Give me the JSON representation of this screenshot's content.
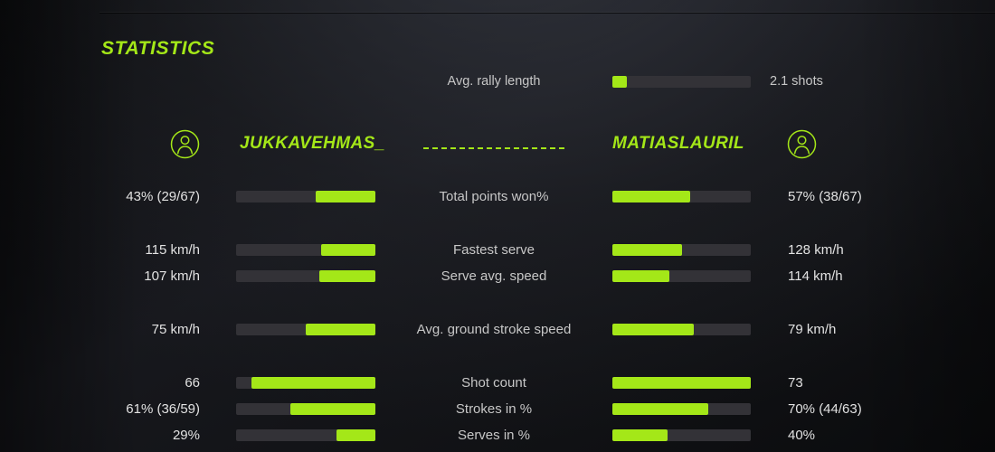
{
  "page": {
    "title": "STATISTICS"
  },
  "colors": {
    "accent": "#a4e718",
    "bar_track": "#333237",
    "label_text": "#c7c7c7",
    "value_text": "#e2e2e2"
  },
  "rally": {
    "label": "Avg. rally length",
    "value": "2.1 shots",
    "fill_pct": 10.5
  },
  "players": {
    "left": {
      "name": "JUKKAVEHMAS_",
      "icon": "person-circle-icon"
    },
    "right": {
      "name": "MATIASLAURIL",
      "icon": "person-circle-icon"
    }
  },
  "rows": [
    {
      "label": "Total points won%",
      "section_gap": false,
      "left": {
        "display": "43% (29/67)",
        "fill_pct": 43
      },
      "right": {
        "display": "57% (38/67)",
        "fill_pct": 56
      }
    },
    {
      "label": "Fastest serve",
      "section_gap": true,
      "left": {
        "display": "115 km/h",
        "fill_pct": 39
      },
      "right": {
        "display": "128 km/h",
        "fill_pct": 50
      }
    },
    {
      "label": "Serve avg. speed",
      "section_gap": false,
      "left": {
        "display": "107 km/h",
        "fill_pct": 40
      },
      "right": {
        "display": "114 km/h",
        "fill_pct": 41
      }
    },
    {
      "label": "Avg. ground stroke speed",
      "section_gap": true,
      "left": {
        "display": "75 km/h",
        "fill_pct": 50
      },
      "right": {
        "display": "79 km/h",
        "fill_pct": 59
      }
    },
    {
      "label": "Shot count",
      "section_gap": true,
      "left": {
        "display": "66",
        "fill_pct": 89
      },
      "right": {
        "display": "73",
        "fill_pct": 100
      }
    },
    {
      "label": "Strokes in %",
      "section_gap": false,
      "left": {
        "display": "61% (36/59)",
        "fill_pct": 61
      },
      "right": {
        "display": "70% (44/63)",
        "fill_pct": 69
      }
    },
    {
      "label": "Serves in %",
      "section_gap": false,
      "left": {
        "display": "29%",
        "fill_pct": 28
      },
      "right": {
        "display": "40%",
        "fill_pct": 40
      }
    }
  ],
  "chart_data": {
    "type": "bar",
    "title": "STATISTICS",
    "layout": "paired horizontal comparison bars, left player fills right-to-left, right player fills left-to-right",
    "shared_stats": [
      {
        "label": "Avg. rally length",
        "value": 2.1,
        "unit": "shots",
        "display": "2.1 shots"
      }
    ],
    "categories": [
      "Total points won%",
      "Fastest serve",
      "Serve avg. speed",
      "Avg. ground stroke speed",
      "Shot count",
      "Strokes in %",
      "Serves in %"
    ],
    "series": [
      {
        "name": "JUKKAVEHMAS_",
        "display_values": [
          "43% (29/67)",
          "115 km/h",
          "107 km/h",
          "75 km/h",
          "66",
          "61% (36/59)",
          "29%"
        ],
        "values": [
          43,
          115,
          107,
          75,
          66,
          61,
          29
        ],
        "bar_fill_pct": [
          43,
          39,
          40,
          50,
          89,
          61,
          28
        ]
      },
      {
        "name": "MATIASLAURIL",
        "display_values": [
          "57% (38/67)",
          "128 km/h",
          "114 km/h",
          "79 km/h",
          "73",
          "70% (44/63)",
          "40%"
        ],
        "values": [
          57,
          128,
          114,
          79,
          73,
          70,
          40
        ],
        "bar_fill_pct": [
          56,
          50,
          41,
          59,
          100,
          69,
          40
        ]
      }
    ]
  }
}
